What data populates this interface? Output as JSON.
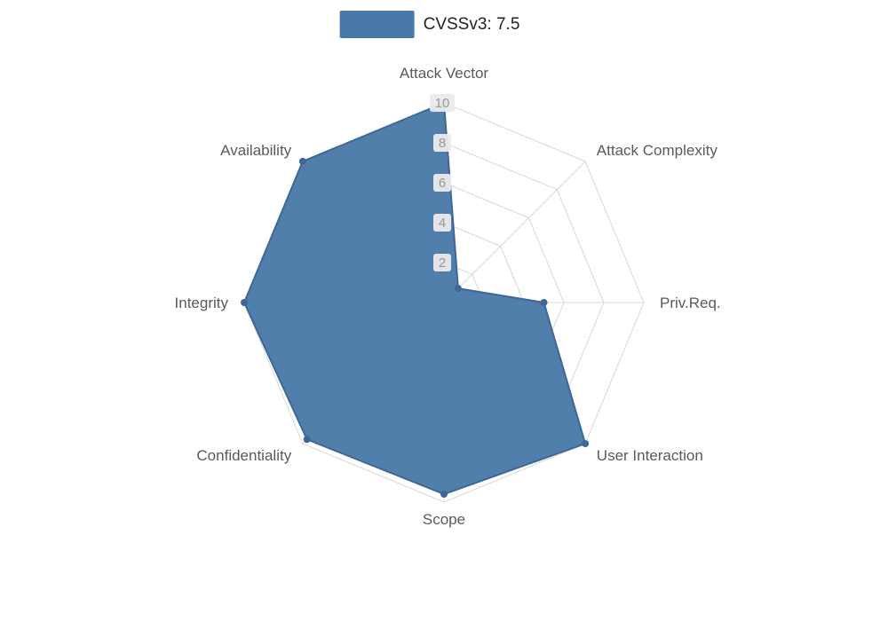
{
  "legend": {
    "label": "CVSSv3: 7.5",
    "color": "#4878a8"
  },
  "chart_data": {
    "type": "radar",
    "title": "CVSSv3: 7.5",
    "indicators": [
      "Attack Vector",
      "Attack Complexity",
      "Priv.Req.",
      "User Interaction",
      "Scope",
      "Confidentiality",
      "Integrity",
      "Availability"
    ],
    "series": [
      {
        "name": "CVSSv3: 7.5",
        "values": [
          10,
          1,
          5,
          10,
          9.6,
          9.7,
          10,
          10
        ]
      }
    ],
    "axis_max": 10,
    "tick_values": [
      2,
      4,
      6,
      8,
      10
    ],
    "legend_position": "top-center",
    "grid": true,
    "colors": {
      "fill": "#4878a8",
      "stroke": "#3e6796",
      "grid_line": "#d8d8d8",
      "tick_box_bg": "#ebebeb",
      "tick_text": "#999999",
      "axis_label_text": "#5a5a5a"
    }
  }
}
